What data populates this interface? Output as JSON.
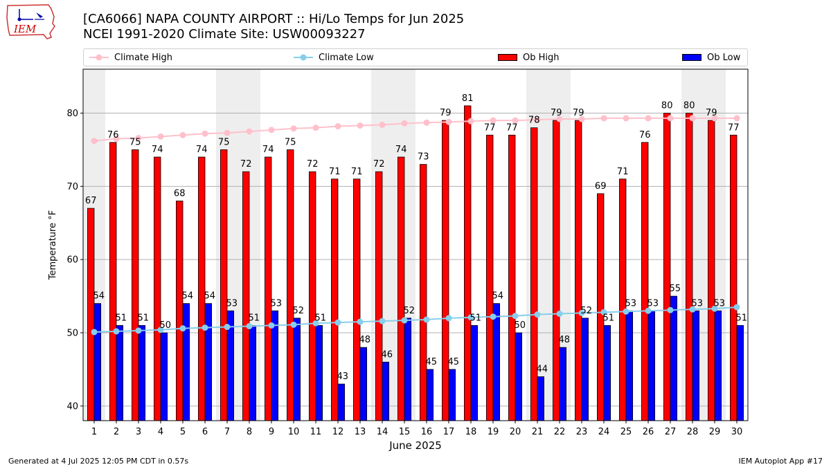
{
  "header": {
    "title_line1": "[CA6066] NAPA COUNTY AIRPORT :: Hi/Lo Temps for Jun 2025",
    "title_line2": "NCEI 1991-2020 Climate Site: USW00093227"
  },
  "logo": {
    "text": "IEM"
  },
  "legend": [
    {
      "label": "Climate High",
      "kind": "line",
      "color": "#ffc0cb"
    },
    {
      "label": "Climate Low",
      "kind": "line",
      "color": "#87ceeb"
    },
    {
      "label": "Ob High",
      "kind": "bar",
      "color": "#ff0000"
    },
    {
      "label": "Ob Low",
      "kind": "bar",
      "color": "#0000ff"
    }
  ],
  "footer": {
    "left": "Generated at 4 Jul 2025 12:05 PM CDT in 0.57s",
    "right": "IEM Autoplot App #17"
  },
  "colors": {
    "shade": "#eeeeee",
    "grid": "#b0b0b0"
  },
  "chart_data": {
    "type": "bar",
    "xlabel": "June 2025",
    "ylabel": "Temperature °F",
    "ylim": [
      38,
      86
    ],
    "yticks": [
      40,
      50,
      60,
      70,
      80
    ],
    "grid": "horizontal",
    "categories": [
      "1",
      "2",
      "3",
      "4",
      "5",
      "6",
      "7",
      "8",
      "9",
      "10",
      "11",
      "12",
      "13",
      "14",
      "15",
      "16",
      "17",
      "18",
      "19",
      "20",
      "21",
      "22",
      "23",
      "24",
      "25",
      "26",
      "27",
      "28",
      "29",
      "30"
    ],
    "weekend_shading_days": [
      1,
      7,
      8,
      14,
      15,
      21,
      22,
      28,
      29
    ],
    "series": [
      {
        "name": "Ob High",
        "kind": "bar",
        "color": "#ff0000",
        "values": [
          67,
          76,
          75,
          74,
          68,
          74,
          75,
          72,
          74,
          75,
          72,
          71,
          71,
          72,
          74,
          73,
          79,
          81,
          77,
          77,
          78,
          79,
          79,
          69,
          71,
          76,
          80,
          80,
          79,
          77
        ]
      },
      {
        "name": "Ob Low",
        "kind": "bar",
        "color": "#0000ff",
        "values": [
          54,
          51,
          51,
          50,
          54,
          54,
          53,
          51,
          53,
          52,
          51,
          43,
          48,
          46,
          52,
          45,
          45,
          51,
          54,
          50,
          44,
          48,
          52,
          51,
          53,
          53,
          55,
          53,
          53,
          51
        ]
      },
      {
        "name": "Climate High",
        "kind": "line",
        "color": "#ffc0cb",
        "values": [
          76.2,
          76.5,
          76.6,
          76.8,
          77.0,
          77.2,
          77.3,
          77.5,
          77.7,
          77.9,
          78.0,
          78.2,
          78.3,
          78.4,
          78.6,
          78.7,
          78.8,
          78.9,
          79.0,
          79.0,
          79.1,
          79.2,
          79.2,
          79.3,
          79.3,
          79.3,
          79.3,
          79.3,
          79.3,
          79.3
        ]
      },
      {
        "name": "Climate Low",
        "kind": "line",
        "color": "#87ceeb",
        "values": [
          50.1,
          50.2,
          50.3,
          50.4,
          50.6,
          50.7,
          50.8,
          50.9,
          51.0,
          51.1,
          51.3,
          51.4,
          51.5,
          51.6,
          51.7,
          51.8,
          52.0,
          52.1,
          52.2,
          52.3,
          52.5,
          52.6,
          52.7,
          52.8,
          52.9,
          53.0,
          53.1,
          53.2,
          53.3,
          53.5
        ]
      }
    ]
  }
}
